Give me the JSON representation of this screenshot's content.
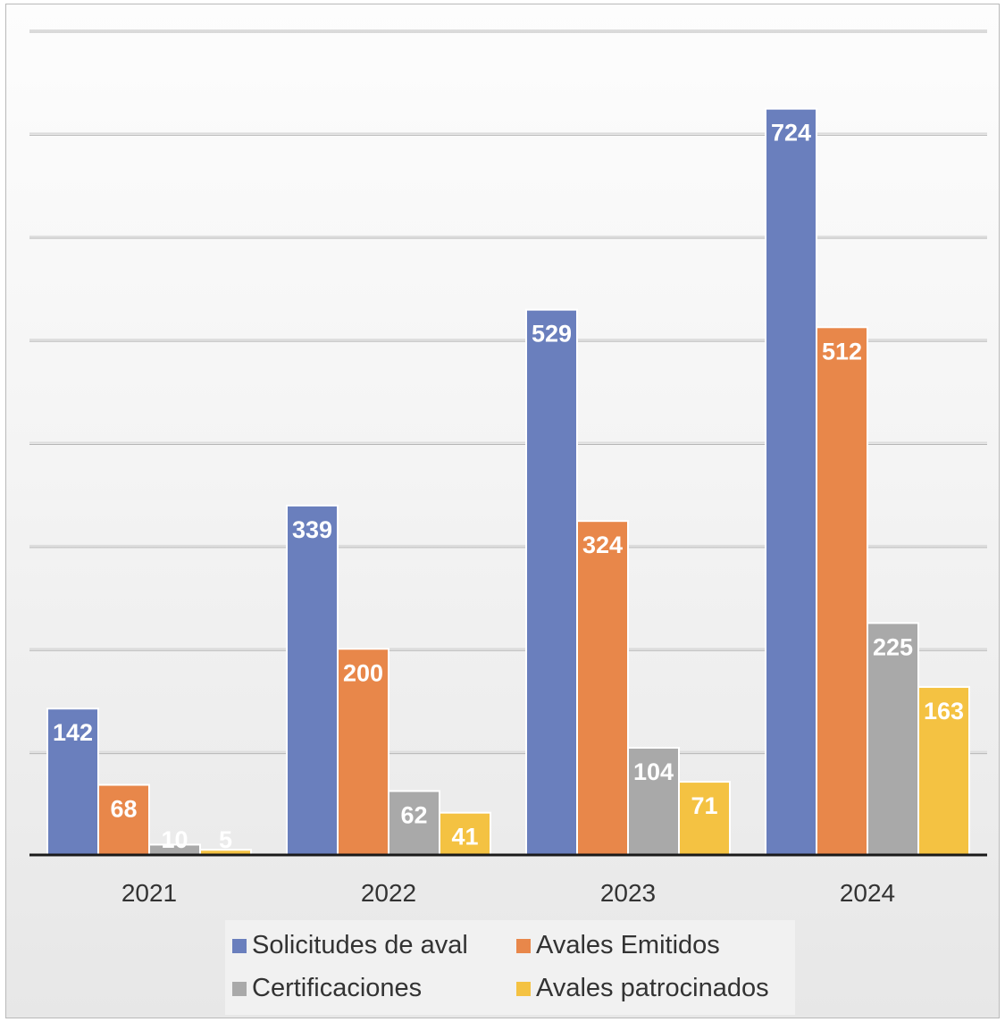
{
  "chart_data": {
    "type": "bar",
    "categories": [
      "2021",
      "2022",
      "2023",
      "2024"
    ],
    "series": [
      {
        "name": "Solicitudes de aval",
        "color": "#6a7fbd",
        "values": [
          142,
          339,
          529,
          724
        ]
      },
      {
        "name": "Avales Emitidos",
        "color": "#e8874a",
        "values": [
          68,
          200,
          324,
          512
        ]
      },
      {
        "name": "Certificaciones",
        "color": "#a9a9a9",
        "values": [
          10,
          62,
          104,
          225
        ]
      },
      {
        "name": "Avales patrocinados",
        "color": "#f4c242",
        "values": [
          5,
          41,
          71,
          163
        ]
      }
    ],
    "ylim": [
      0,
      800
    ],
    "grid": true,
    "data_labels": true,
    "legend_position": "bottom",
    "title": "",
    "xlabel": "",
    "ylabel": ""
  }
}
